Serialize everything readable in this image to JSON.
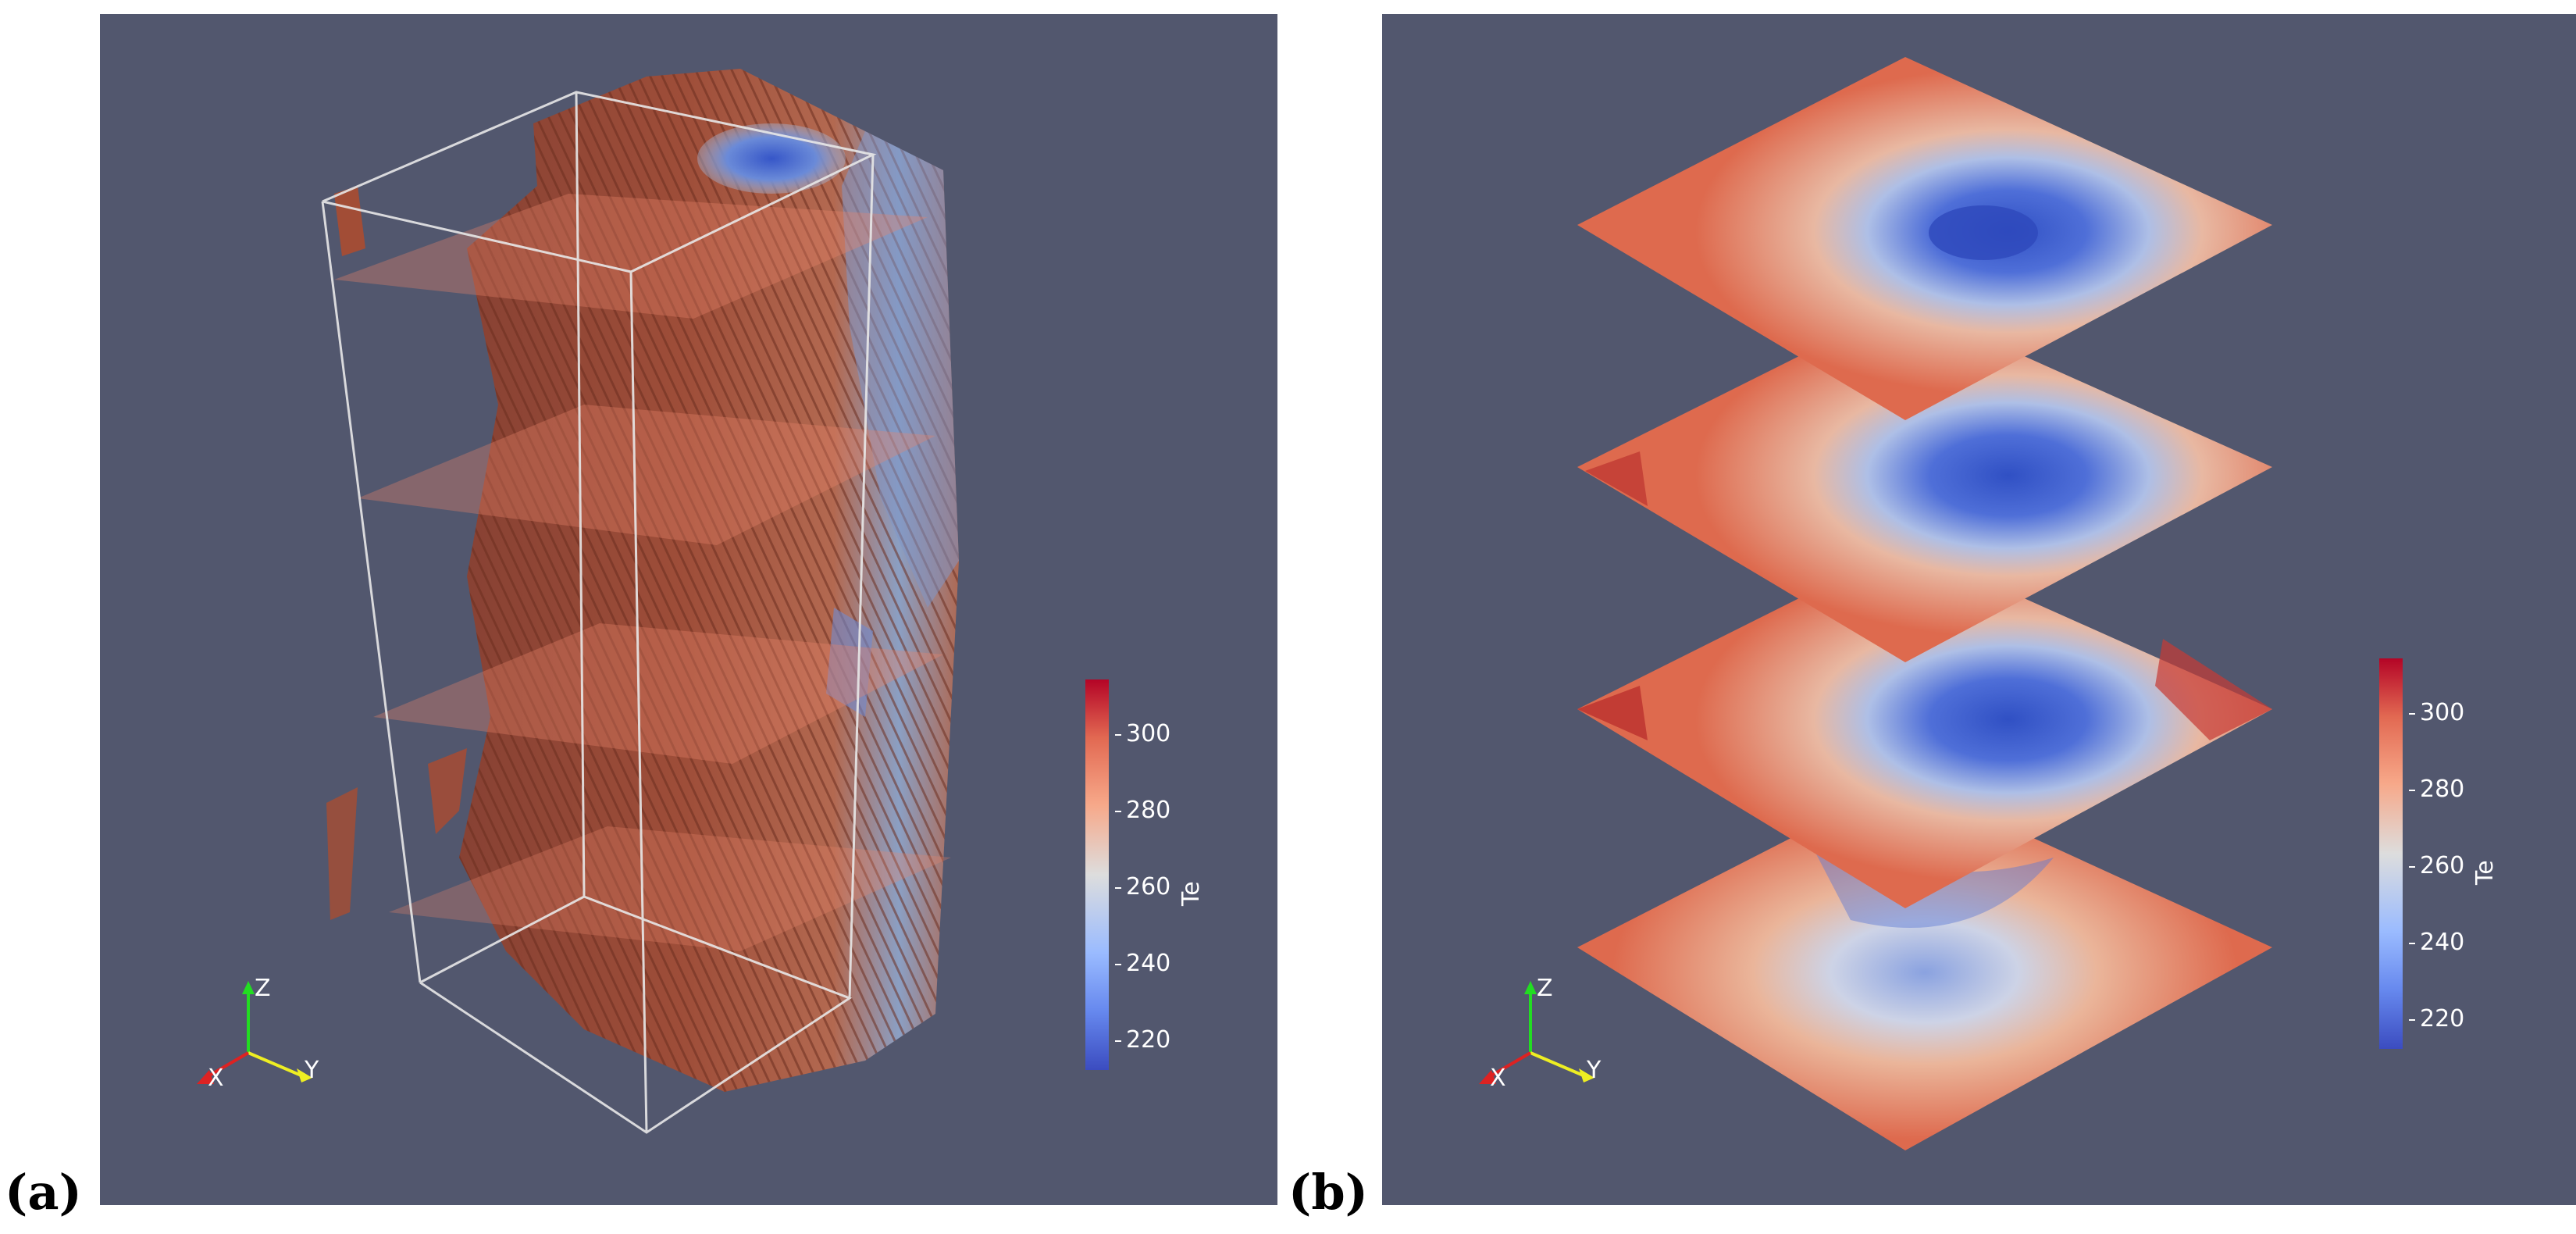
{
  "panels": [
    {
      "label": "(a)",
      "colorbar": {
        "title": "Te",
        "ticks": [
          "300",
          "280",
          "260",
          "240",
          "220"
        ]
      },
      "axes": {
        "x": "X",
        "y": "Y",
        "z": "Z"
      }
    },
    {
      "label": "(b)",
      "colorbar": {
        "title": "Te",
        "ticks": [
          "300",
          "280",
          "260",
          "240",
          "220"
        ]
      },
      "axes": {
        "x": "X",
        "y": "Y",
        "z": "Z"
      }
    }
  ],
  "colors": {
    "background": "#52576e",
    "cmap_low": "#3b4cc0",
    "cmap_mid": "#dddddd",
    "cmap_high": "#b40426"
  }
}
